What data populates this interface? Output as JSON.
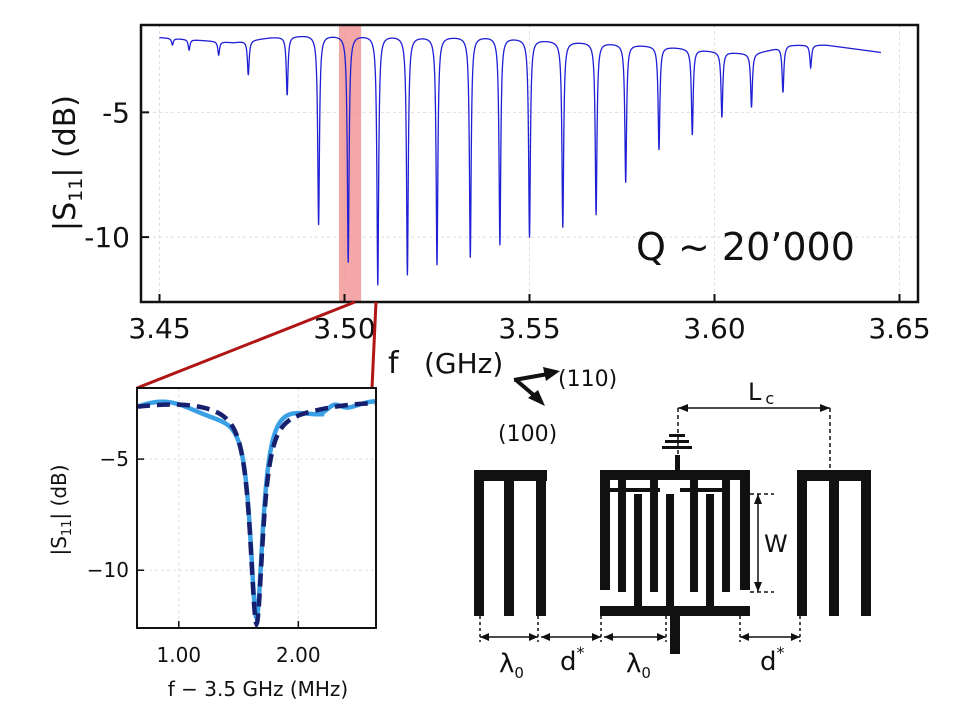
{
  "chart_data": [
    {
      "type": "line",
      "xlabel": "f",
      "xunit": "(GHz)",
      "ylabel_main": "|S",
      "ylabel_sub": "11",
      "ylabel_unit": "| (dB)",
      "xlim": [
        3.445,
        3.655
      ],
      "ylim": [
        -12.6,
        -1.5
      ],
      "xticks": [
        3.45,
        3.5,
        3.55,
        3.6,
        3.65
      ],
      "xtick_labels": [
        "3.45",
        "3.50",
        "3.55",
        "3.60",
        "3.65"
      ],
      "yticks": [
        -5,
        -10
      ],
      "ytick_labels": [
        "-5",
        "-10"
      ],
      "grid": true,
      "annotation": "Q ~ 20’000",
      "highlight_x": [
        3.4985,
        3.5045
      ],
      "series_color": "#1f1fd6",
      "highlight_color": "#f08a8a",
      "baseline": [
        [
          3.45,
          -2.0
        ],
        [
          3.46,
          -2.1
        ],
        [
          3.47,
          -2.2
        ],
        [
          3.48,
          -2.0
        ],
        [
          3.49,
          -1.9
        ],
        [
          3.5,
          -1.9
        ],
        [
          3.51,
          -1.9
        ],
        [
          3.52,
          -1.95
        ],
        [
          3.53,
          -1.95
        ],
        [
          3.54,
          -1.95
        ],
        [
          3.55,
          -2.05
        ],
        [
          3.56,
          -2.15
        ],
        [
          3.57,
          -2.2
        ],
        [
          3.58,
          -2.3
        ],
        [
          3.59,
          -2.4
        ],
        [
          3.6,
          -2.55
        ],
        [
          3.61,
          -2.65
        ],
        [
          3.615,
          -2.5
        ],
        [
          3.62,
          -2.3
        ],
        [
          3.63,
          -2.3
        ],
        [
          3.64,
          -2.5
        ],
        [
          3.645,
          -2.6
        ]
      ],
      "resonances": [
        {
          "f": 3.4535,
          "depth": -2.3
        },
        {
          "f": 3.458,
          "depth": -2.5
        },
        {
          "f": 3.466,
          "depth": -2.7
        },
        {
          "f": 3.474,
          "depth": -3.5
        },
        {
          "f": 3.4845,
          "depth": -4.3
        },
        {
          "f": 3.493,
          "depth": -9.5
        },
        {
          "f": 3.501,
          "depth": -11.0
        },
        {
          "f": 3.509,
          "depth": -11.9
        },
        {
          "f": 3.517,
          "depth": -11.5
        },
        {
          "f": 3.525,
          "depth": -11.1
        },
        {
          "f": 3.534,
          "depth": -10.8
        },
        {
          "f": 3.542,
          "depth": -10.3
        },
        {
          "f": 3.55,
          "depth": -10.0
        },
        {
          "f": 3.559,
          "depth": -9.6
        },
        {
          "f": 3.568,
          "depth": -9.1
        },
        {
          "f": 3.576,
          "depth": -7.8
        },
        {
          "f": 3.585,
          "depth": -6.5
        },
        {
          "f": 3.594,
          "depth": -5.9
        },
        {
          "f": 3.602,
          "depth": -5.2
        },
        {
          "f": 3.61,
          "depth": -4.8
        },
        {
          "f": 3.6185,
          "depth": -4.2
        },
        {
          "f": 3.626,
          "depth": -3.2
        }
      ]
    },
    {
      "type": "line",
      "xlabel": "f − 3.5 GHz (MHz)",
      "ylabel_main": "|S",
      "ylabel_sub": "11",
      "ylabel_unit": "| (dB)",
      "xlim": [
        0.65,
        2.65
      ],
      "ylim": [
        -12.6,
        -1.8
      ],
      "xticks": [
        1.0,
        2.0
      ],
      "xtick_labels": [
        "1.00",
        "2.00"
      ],
      "yticks": [
        -5,
        -10
      ],
      "ytick_labels": [
        "−5",
        "−10"
      ],
      "grid": true,
      "series": [
        {
          "style": "solid",
          "color": "#3aa0e6"
        },
        {
          "style": "dashed",
          "color": "#16206e"
        }
      ],
      "resonance": {
        "f0": 1.65,
        "depth": -12.3,
        "baseline": -2.6
      }
    }
  ],
  "diagram": {
    "crystal_axis_1": "(110)",
    "crystal_axis_2": "(100)",
    "label_Lc": "L",
    "label_Lc_sub": "c",
    "label_W": "W",
    "label_lambda": "λ",
    "label_lambda_sub": "0",
    "label_d": "d",
    "label_d_sup": "*"
  }
}
